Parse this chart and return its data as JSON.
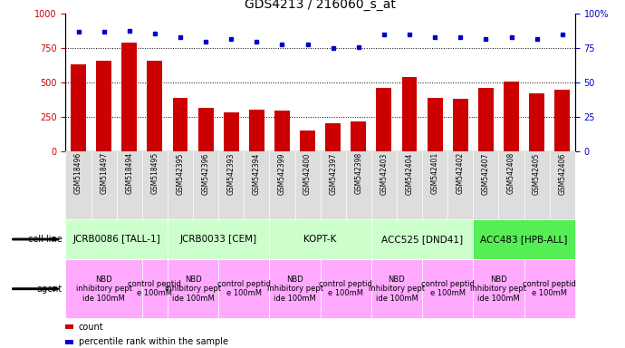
{
  "title": "GDS4213 / 216060_s_at",
  "samples": [
    "GSM518496",
    "GSM518497",
    "GSM518494",
    "GSM518495",
    "GSM542395",
    "GSM542396",
    "GSM542393",
    "GSM542394",
    "GSM542399",
    "GSM542400",
    "GSM542397",
    "GSM542398",
    "GSM542403",
    "GSM542404",
    "GSM542401",
    "GSM542402",
    "GSM542407",
    "GSM542408",
    "GSM542405",
    "GSM542406"
  ],
  "counts": [
    630,
    660,
    790,
    660,
    390,
    320,
    285,
    305,
    295,
    155,
    205,
    215,
    460,
    540,
    390,
    380,
    465,
    510,
    425,
    450
  ],
  "percentiles": [
    87,
    87,
    88,
    86,
    83,
    80,
    82,
    80,
    78,
    78,
    75,
    76,
    85,
    85,
    83,
    83,
    82,
    83,
    82,
    85
  ],
  "cell_lines": [
    {
      "label": "JCRB0086 [TALL-1]",
      "start": 0,
      "end": 4,
      "color": "#ccffcc"
    },
    {
      "label": "JCRB0033 [CEM]",
      "start": 4,
      "end": 8,
      "color": "#ccffcc"
    },
    {
      "label": "KOPT-K",
      "start": 8,
      "end": 12,
      "color": "#ccffcc"
    },
    {
      "label": "ACC525 [DND41]",
      "start": 12,
      "end": 16,
      "color": "#ccffcc"
    },
    {
      "label": "ACC483 [HPB-ALL]",
      "start": 16,
      "end": 20,
      "color": "#55ee55"
    }
  ],
  "agents": [
    {
      "label": "NBD\ninhibitory pept\nide 100mM",
      "start": 0,
      "end": 3,
      "color": "#ffaaff"
    },
    {
      "label": "control peptid\ne 100mM",
      "start": 3,
      "end": 4,
      "color": "#ffaaff"
    },
    {
      "label": "NBD\ninhibitory pept\nide 100mM",
      "start": 4,
      "end": 6,
      "color": "#ffaaff"
    },
    {
      "label": "control peptid\ne 100mM",
      "start": 6,
      "end": 8,
      "color": "#ffaaff"
    },
    {
      "label": "NBD\ninhibitory pept\nide 100mM",
      "start": 8,
      "end": 10,
      "color": "#ffaaff"
    },
    {
      "label": "control peptid\ne 100mM",
      "start": 10,
      "end": 12,
      "color": "#ffaaff"
    },
    {
      "label": "NBD\ninhibitory pept\nide 100mM",
      "start": 12,
      "end": 14,
      "color": "#ffaaff"
    },
    {
      "label": "control peptid\ne 100mM",
      "start": 14,
      "end": 16,
      "color": "#ffaaff"
    },
    {
      "label": "NBD\ninhibitory pept\nide 100mM",
      "start": 16,
      "end": 18,
      "color": "#ffaaff"
    },
    {
      "label": "control peptid\ne 100mM",
      "start": 18,
      "end": 20,
      "color": "#ffaaff"
    }
  ],
  "bar_color": "#cc0000",
  "dot_color": "#0000cc",
  "bar_width": 0.6,
  "ylim_left": [
    0,
    1000
  ],
  "ylim_right": [
    0,
    100
  ],
  "yticks_left": [
    0,
    250,
    500,
    750,
    1000
  ],
  "yticks_right": [
    0,
    25,
    50,
    75,
    100
  ],
  "bg_color": "#ffffff",
  "tick_label_color_left": "#cc0000",
  "tick_label_color_right": "#0000cc",
  "title_fontsize": 10,
  "tick_fontsize": 7,
  "sample_fontsize": 5.5,
  "cell_line_fontsize": 7.5,
  "agent_fontsize": 6,
  "legend_fontsize": 7,
  "row_label_fontsize": 7
}
